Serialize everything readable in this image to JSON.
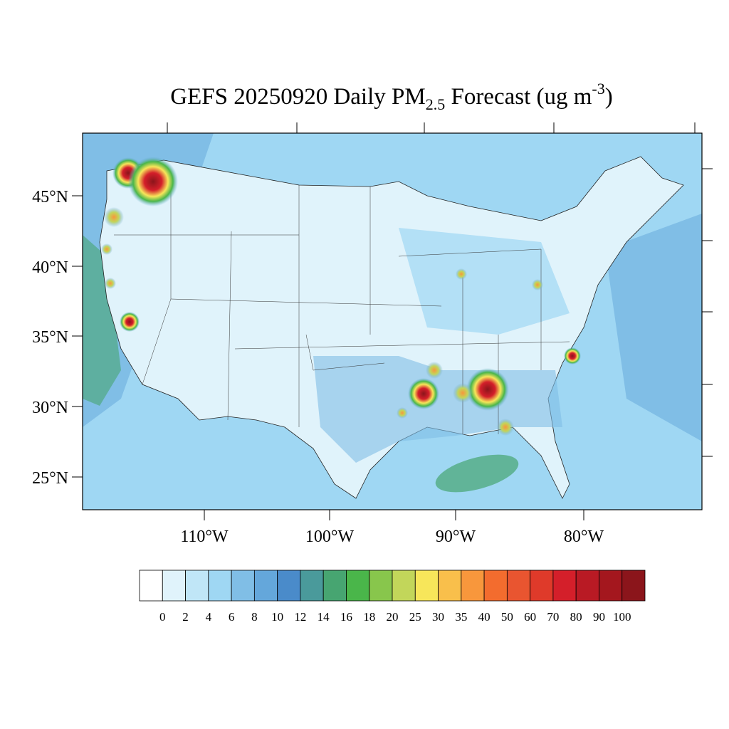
{
  "title": {
    "main": "GEFS 20250920 Daily PM",
    "sub": "2.5",
    "mid": " Forecast (ug m",
    "sup": "-3",
    "end": ")"
  },
  "map": {
    "lat_labels": [
      "45°N",
      "40°N",
      "35°N",
      "30°N",
      "25°N"
    ],
    "lon_labels": [
      "110°W",
      "100°W",
      "90°W",
      "80°W"
    ]
  },
  "colorbar": {
    "labels": [
      "0",
      "2",
      "4",
      "6",
      "8",
      "10",
      "12",
      "14",
      "16",
      "18",
      "20",
      "25",
      "30",
      "35",
      "40",
      "50",
      "60",
      "70",
      "80",
      "90",
      "100"
    ],
    "colors": [
      "#ffffff",
      "#e0f3fb",
      "#c0e6f7",
      "#9fd7f3",
      "#80bee6",
      "#64a7db",
      "#4a8bca",
      "#4a9a9b",
      "#47a571",
      "#4ab64a",
      "#88c64c",
      "#c2d65a",
      "#f7e65a",
      "#f9bf4b",
      "#f8973c",
      "#f36c2e",
      "#e95530",
      "#df3a2a",
      "#d41f2a",
      "#b91a24",
      "#a4171e",
      "#8b151b"
    ]
  }
}
